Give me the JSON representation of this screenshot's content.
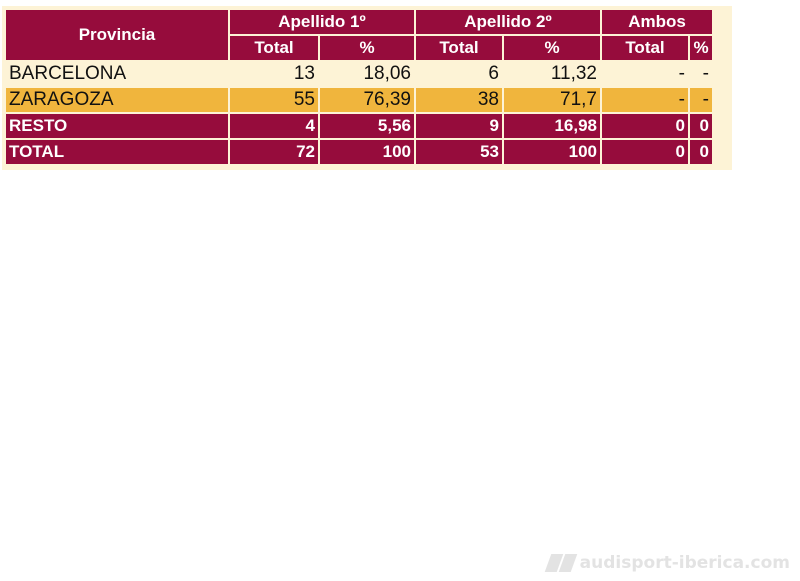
{
  "table": {
    "headers": {
      "provincia": "Provincia",
      "apellido1": "Apellido 1º",
      "apellido2": "Apellido 2º",
      "ambos": "Ambos",
      "total": "Total",
      "pct": "%"
    },
    "rows": [
      {
        "provincia": "BARCELONA",
        "a1_total": "13",
        "a1_pct": "18,06",
        "a2_total": "6",
        "a2_pct": "11,32",
        "ambos_total": "-",
        "ambos_pct": "-"
      },
      {
        "provincia": "ZARAGOZA",
        "a1_total": "55",
        "a1_pct": "76,39",
        "a2_total": "38",
        "a2_pct": "71,7",
        "ambos_total": "-",
        "ambos_pct": "-"
      },
      {
        "provincia": "RESTO",
        "a1_total": "4",
        "a1_pct": "5,56",
        "a2_total": "9",
        "a2_pct": "16,98",
        "ambos_total": "0",
        "ambos_pct": "0"
      },
      {
        "provincia": "TOTAL",
        "a1_total": "72",
        "a1_pct": "100",
        "a2_total": "53",
        "a2_pct": "100",
        "ambos_total": "0",
        "ambos_pct": "0"
      }
    ]
  },
  "watermark": {
    "text": "audisport-iberica.com"
  },
  "colors": {
    "header_bg": "#960c3c",
    "row_light": "#fdf3d6",
    "row_highlight": "#f0b53d"
  }
}
